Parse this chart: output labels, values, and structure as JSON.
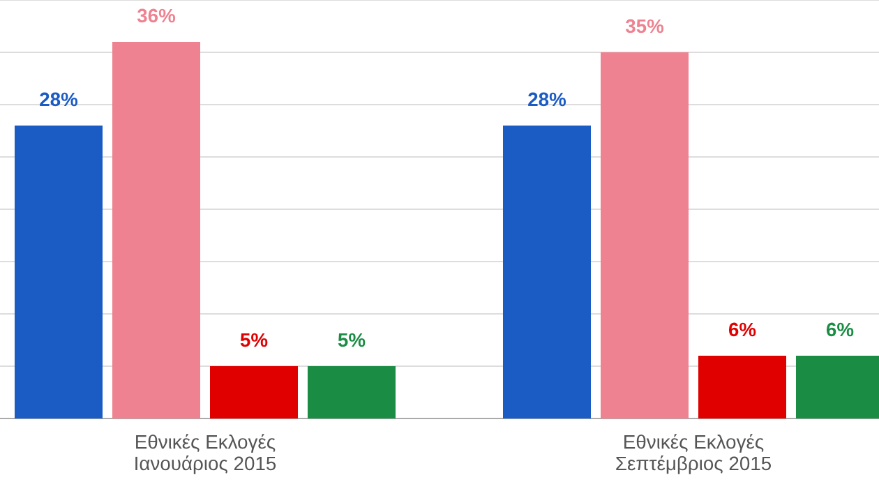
{
  "chart_data": {
    "type": "bar",
    "categories": [
      "Εθνικές Εκλογές\nΙανουάριος 2015",
      "Εθνικές Εκλογές\nΣεπτέμβριος 2015"
    ],
    "series": [
      {
        "color": "#1a5bc4",
        "values": [
          28,
          28
        ],
        "value_labels": [
          "28%",
          "28%"
        ]
      },
      {
        "color": "#ee8290",
        "values": [
          36,
          35
        ],
        "value_labels": [
          "36%",
          "35%"
        ]
      },
      {
        "color": "#e00000",
        "values": [
          5,
          6
        ],
        "value_labels": [
          "5%",
          "6%"
        ]
      },
      {
        "color": "#1a8c44",
        "values": [
          5,
          6
        ],
        "value_labels": [
          "5%",
          "6%"
        ]
      }
    ],
    "ylim": [
      0,
      40
    ],
    "yticks": [
      {
        "value": 0,
        "label": null
      },
      {
        "value": 5,
        "label": null
      },
      {
        "value": 10,
        "label": null
      },
      {
        "value": 15,
        "label": null
      },
      {
        "value": 20,
        "label": null
      },
      {
        "value": 25,
        "label": null
      },
      {
        "value": 30,
        "label": null
      },
      {
        "value": 35,
        "label": null
      },
      {
        "value": 40,
        "label": null
      }
    ],
    "grid": "y",
    "tick_labels": "x"
  }
}
